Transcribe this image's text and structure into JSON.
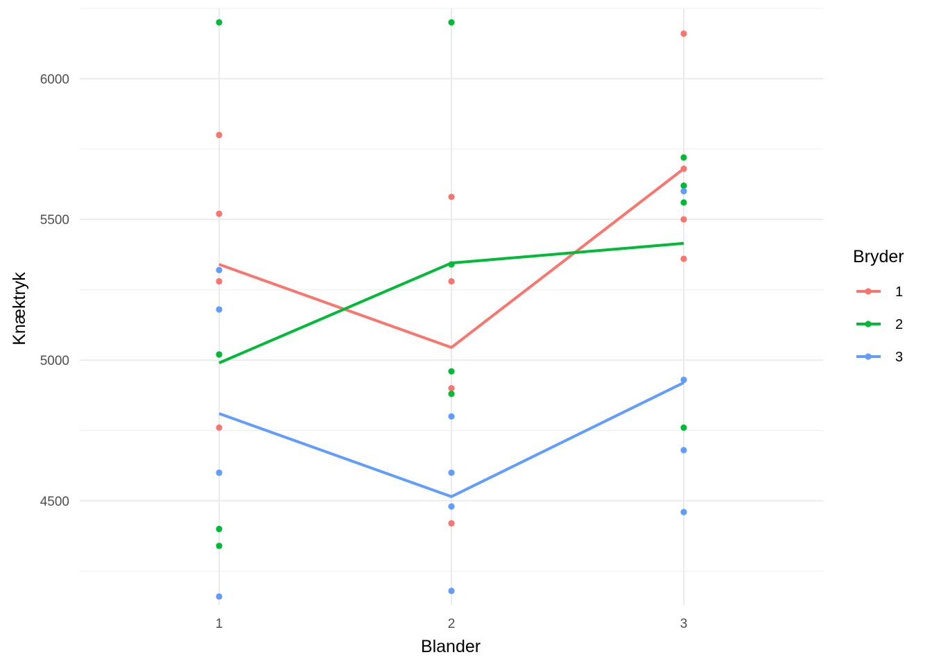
{
  "chart_data": {
    "type": "line",
    "xlabel": "Blander",
    "ylabel": "Knæktryk",
    "x_ticks": [
      "1",
      "2",
      "3"
    ],
    "y_ticks": [
      4500,
      5000,
      5500,
      6000
    ],
    "xlim": [
      0.4,
      3.6
    ],
    "ylim": [
      4130,
      6250
    ],
    "grid": true,
    "legend": {
      "title": "Bryder",
      "position": "right",
      "entries": [
        "1",
        "2",
        "3"
      ]
    },
    "series": [
      {
        "name": "1",
        "color": "#F8766D",
        "mean_line": [
          {
            "x": 1,
            "y": 5340
          },
          {
            "x": 2,
            "y": 5045
          },
          {
            "x": 3,
            "y": 5680
          }
        ],
        "points": [
          {
            "x": 1,
            "y": 5800
          },
          {
            "x": 1,
            "y": 5520
          },
          {
            "x": 1,
            "y": 5280
          },
          {
            "x": 1,
            "y": 4760
          },
          {
            "x": 2,
            "y": 5580
          },
          {
            "x": 2,
            "y": 5280
          },
          {
            "x": 2,
            "y": 4900
          },
          {
            "x": 2,
            "y": 4420
          },
          {
            "x": 3,
            "y": 6160
          },
          {
            "x": 3,
            "y": 5680
          },
          {
            "x": 3,
            "y": 5500
          },
          {
            "x": 3,
            "y": 5360
          }
        ]
      },
      {
        "name": "2",
        "color": "#00BA38",
        "mean_line": [
          {
            "x": 1,
            "y": 4990
          },
          {
            "x": 2,
            "y": 5345
          },
          {
            "x": 3,
            "y": 5415
          }
        ],
        "points": [
          {
            "x": 1,
            "y": 6200
          },
          {
            "x": 1,
            "y": 5020
          },
          {
            "x": 1,
            "y": 4400
          },
          {
            "x": 1,
            "y": 4340
          },
          {
            "x": 2,
            "y": 6200
          },
          {
            "x": 2,
            "y": 5340
          },
          {
            "x": 2,
            "y": 4960
          },
          {
            "x": 2,
            "y": 4880
          },
          {
            "x": 3,
            "y": 5720
          },
          {
            "x": 3,
            "y": 5620
          },
          {
            "x": 3,
            "y": 5560
          },
          {
            "x": 3,
            "y": 4760
          }
        ]
      },
      {
        "name": "3",
        "color": "#619CFF",
        "mean_line": [
          {
            "x": 1,
            "y": 4810
          },
          {
            "x": 2,
            "y": 4515
          },
          {
            "x": 3,
            "y": 4920
          }
        ],
        "points": [
          {
            "x": 1,
            "y": 5320
          },
          {
            "x": 1,
            "y": 5180
          },
          {
            "x": 1,
            "y": 4600
          },
          {
            "x": 1,
            "y": 4160
          },
          {
            "x": 2,
            "y": 4800
          },
          {
            "x": 2,
            "y": 4600
          },
          {
            "x": 2,
            "y": 4480
          },
          {
            "x": 2,
            "y": 4180
          },
          {
            "x": 3,
            "y": 5600
          },
          {
            "x": 3,
            "y": 4930
          },
          {
            "x": 3,
            "y": 4680
          },
          {
            "x": 3,
            "y": 4460
          }
        ]
      }
    ]
  }
}
